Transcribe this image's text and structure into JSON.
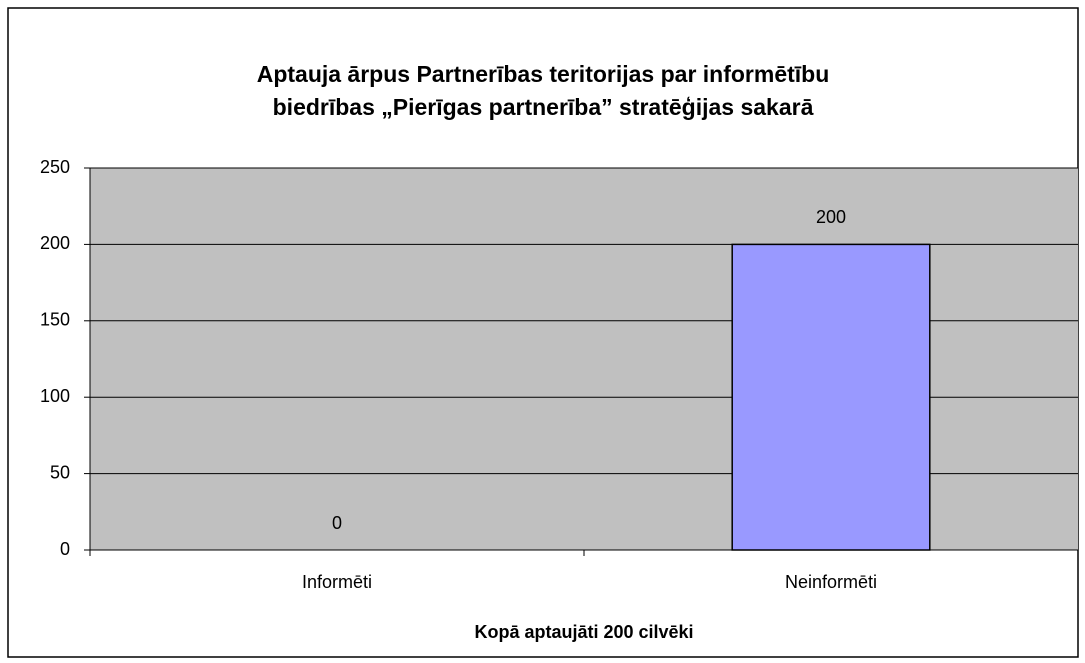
{
  "chart_data": {
    "type": "bar",
    "title": [
      "Aptauja ārpus Partnerības teritorijas par informētību",
      "biedrības „Pierīgas partnerība” stratēģijas sakarā"
    ],
    "x_label": "Kopā aptaujāti 200 cilvēki",
    "categories": [
      "Informēti",
      "Neinformēti"
    ],
    "values": [
      0,
      200
    ],
    "color": "#9999ff",
    "ylim": [
      0,
      250
    ],
    "yticks": [
      0,
      50,
      100,
      150,
      200,
      250
    ],
    "grid": true
  }
}
